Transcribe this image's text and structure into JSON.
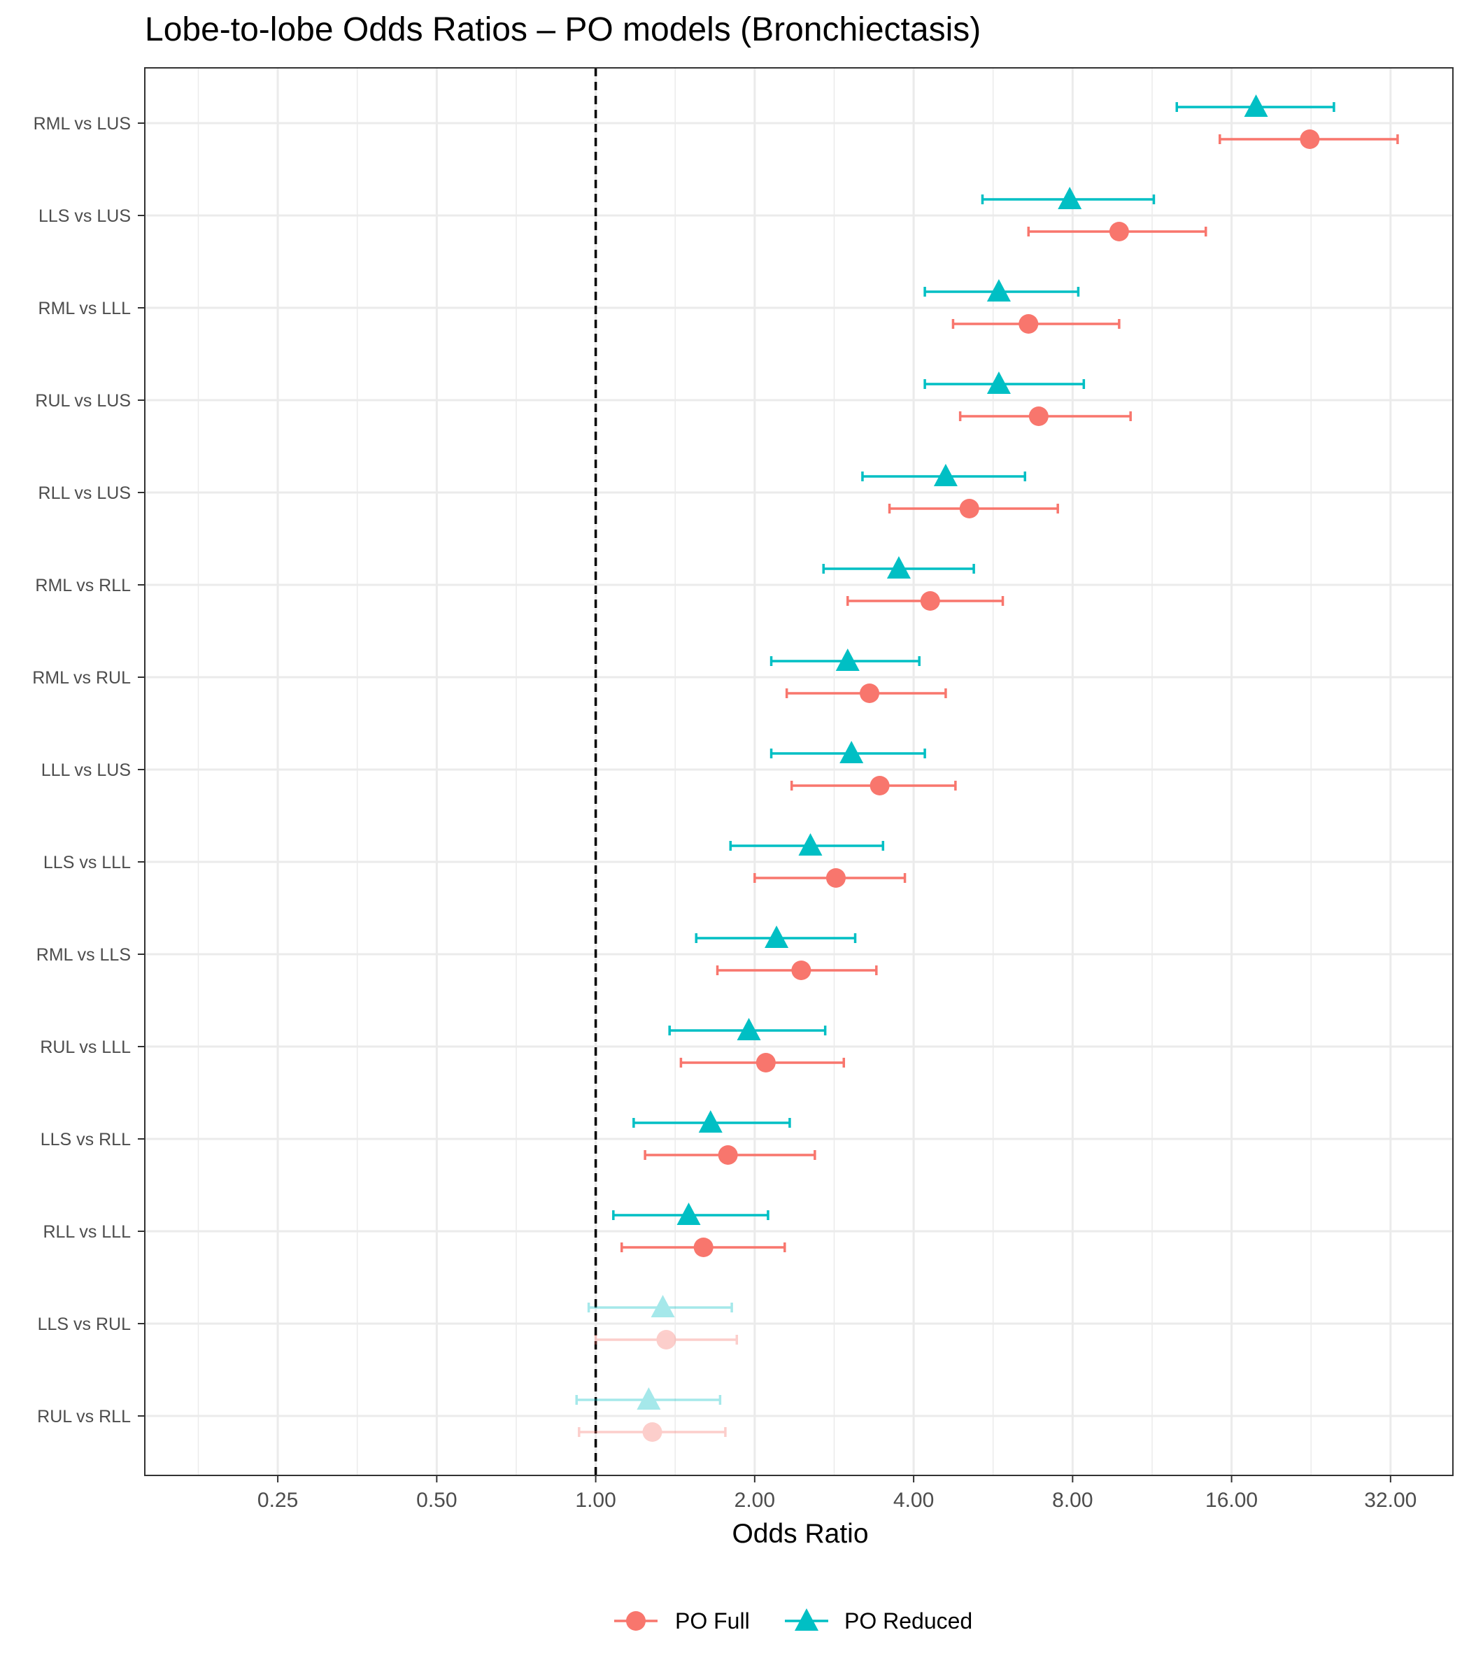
{
  "chart_data": {
    "type": "scatter",
    "subtype": "forest-plot",
    "title": "Lobe-to-lobe Odds Ratios – PO models (Bronchiectasis)",
    "xlabel": "Odds Ratio",
    "ylabel": "",
    "x_scale": "log2",
    "xlim": [
      0.14,
      42
    ],
    "x_ticks": [
      0.25,
      0.5,
      1,
      2,
      4,
      8,
      16,
      32
    ],
    "x_tick_labels": [
      "0.25",
      "0.50",
      "1.00",
      "2.00",
      "4.00",
      "8.00",
      "16.00",
      "32.00"
    ],
    "reference_line": 1,
    "grid": true,
    "legend_position": "bottom",
    "categories": [
      "RML vs LUS",
      "LLS vs LUS",
      "RML vs LLL",
      "RUL vs LUS",
      "RLL vs LUS",
      "RML vs RLL",
      "RML vs RUL",
      "LLL vs LUS",
      "LLS vs LLL",
      "RML vs LLS",
      "RUL vs LLL",
      "LLS vs RLL",
      "RLL vs LLL",
      "LLS vs RUL",
      "RUL vs RLL"
    ],
    "series": [
      {
        "name": "PO Full",
        "color": "#F8766D",
        "marker": "circle",
        "estimate": [
          22.5,
          9.8,
          6.6,
          6.9,
          5.1,
          4.3,
          3.3,
          3.45,
          2.85,
          2.45,
          2.1,
          1.78,
          1.6,
          1.36,
          1.28
        ],
        "lower": [
          15.2,
          6.6,
          4.75,
          4.9,
          3.6,
          3.0,
          2.3,
          2.35,
          2.0,
          1.7,
          1.45,
          1.24,
          1.12,
          1.0,
          0.93
        ],
        "upper": [
          33.0,
          14.3,
          9.8,
          10.3,
          7.5,
          5.9,
          4.6,
          4.8,
          3.85,
          3.4,
          2.95,
          2.6,
          2.28,
          1.85,
          1.76
        ],
        "significant": [
          true,
          true,
          true,
          true,
          true,
          true,
          true,
          true,
          true,
          true,
          true,
          true,
          true,
          false,
          false
        ]
      },
      {
        "name": "PO Reduced",
        "color": "#00BFC4",
        "marker": "triangle",
        "estimate": [
          17.8,
          7.9,
          5.8,
          5.8,
          4.6,
          3.75,
          3.0,
          3.05,
          2.55,
          2.2,
          1.95,
          1.65,
          1.5,
          1.34,
          1.26
        ],
        "lower": [
          12.6,
          5.4,
          4.2,
          4.2,
          3.2,
          2.7,
          2.15,
          2.15,
          1.8,
          1.55,
          1.38,
          1.18,
          1.08,
          0.97,
          0.92
        ],
        "upper": [
          25.0,
          11.4,
          8.2,
          8.4,
          6.5,
          5.2,
          4.1,
          4.2,
          3.5,
          3.1,
          2.72,
          2.33,
          2.12,
          1.81,
          1.72
        ],
        "significant": [
          true,
          true,
          true,
          true,
          true,
          true,
          true,
          true,
          true,
          true,
          true,
          true,
          true,
          false,
          false
        ]
      }
    ]
  }
}
